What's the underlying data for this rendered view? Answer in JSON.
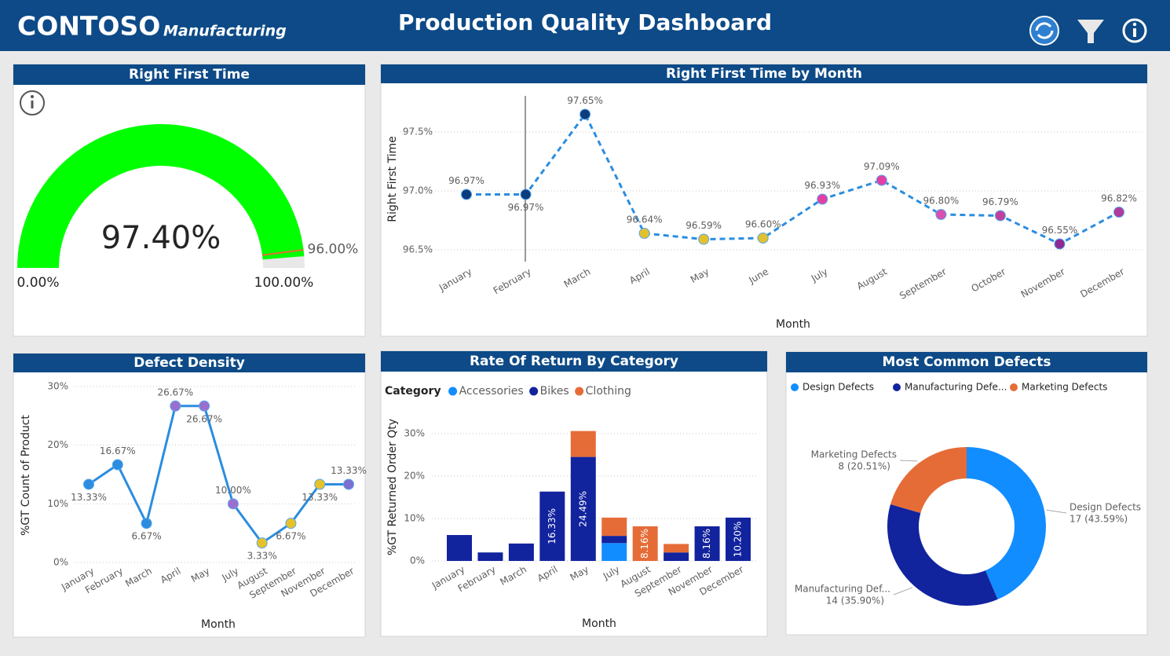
{
  "header": {
    "brand": "CONTOSO",
    "subtitle": "Manufacturing",
    "title": "Production Quality Dashboard"
  },
  "chart_data": [
    {
      "type": "gauge",
      "title": "Right First Time",
      "values": [
        97.4
      ],
      "value_labels": [
        "97.40%"
      ],
      "color": "#00ff00",
      "ylim": [
        0,
        100
      ],
      "yticks": [
        {
          "value": 0,
          "label": "0.00%"
        },
        {
          "value": 100,
          "label": "100.00%"
        }
      ],
      "target": 96,
      "target_label": "96.00%"
    },
    {
      "type": "line",
      "title": "Right First Time by Month",
      "xlabel": "Month",
      "ylabel": "Right First Time",
      "categories": [
        "January",
        "February",
        "March",
        "April",
        "May",
        "June",
        "July",
        "August",
        "September",
        "October",
        "November",
        "December"
      ],
      "values": [
        96.97,
        96.97,
        97.65,
        96.64,
        96.59,
        96.6,
        96.93,
        97.09,
        96.8,
        96.79,
        96.55,
        96.82
      ],
      "value_labels": [
        "96.97%",
        "96.97%",
        "97.65%",
        "96.64%",
        "96.59%",
        "96.60%",
        "96.93%",
        "97.09%",
        "96.80%",
        "96.79%",
        "96.55%",
        "96.82%"
      ],
      "color": "#2b8de0",
      "dashed": true,
      "point_colors": [
        "#0b3d7e",
        "#0b3d7e",
        "#0b3d7e",
        "#e2c12f",
        "#e2c12f",
        "#e2c12f",
        "#e43fa6",
        "#e43fa6",
        "#d94fb0",
        "#c0409e",
        "#8e2a93",
        "#b13a9c"
      ],
      "ylim": [
        96.4,
        97.8
      ],
      "yticks": [
        {
          "value": 96.5,
          "label": "96.5%"
        },
        {
          "value": 97,
          "label": "97.0%"
        },
        {
          "value": 97.5,
          "label": "97.5%"
        }
      ],
      "grid": true
    },
    {
      "type": "line",
      "title": "Defect Density",
      "xlabel": "Month",
      "ylabel": "%GT Count of Product",
      "categories": [
        "January",
        "February",
        "March",
        "April",
        "May",
        "July",
        "August",
        "September",
        "November",
        "December"
      ],
      "values": [
        13.33,
        16.67,
        6.67,
        26.67,
        26.67,
        10,
        3.33,
        6.67,
        13.33,
        13.33
      ],
      "value_labels": [
        "13.33%",
        "16.67%",
        "6.67%",
        "26.67%",
        "26.67%",
        "10.00%",
        "3.33%",
        "6.67%",
        "13.33%",
        "13.33%"
      ],
      "color": "#2b8de0",
      "dashed": false,
      "point_colors": [
        "#2b8de0",
        "#2b8de0",
        "#2b8de0",
        "#9b6fd0",
        "#9b6fd0",
        "#9b6fd0",
        "#e6c229",
        "#e6c229",
        "#e6c229",
        "#7b6fd0"
      ],
      "ylim": [
        0,
        32
      ],
      "yticks": [
        {
          "value": 0,
          "label": "0%"
        },
        {
          "value": 10,
          "label": "10%"
        },
        {
          "value": 20,
          "label": "20%"
        },
        {
          "value": 30,
          "label": "30%"
        }
      ],
      "grid": true
    },
    {
      "type": "bar",
      "stacked": true,
      "title": "Rate Of Return By Category",
      "xlabel": "Month",
      "ylabel": "%GT Returned Order Qty",
      "legend_title": "Category",
      "categories": [
        "January",
        "February",
        "March",
        "April",
        "May",
        "July",
        "August",
        "September",
        "November",
        "December"
      ],
      "series": [
        {
          "name": "Accessories",
          "color": "#118dff",
          "values": [
            null,
            null,
            null,
            null,
            null,
            4.2,
            null,
            null,
            null,
            null
          ]
        },
        {
          "name": "Bikes",
          "color": "#12239e",
          "values": [
            6.1,
            2.0,
            4.1,
            16.33,
            24.49,
            1.7,
            null,
            2.0,
            8.16,
            10.2
          ],
          "value_labels": [
            null,
            null,
            null,
            "16.33%",
            "24.49%",
            null,
            null,
            null,
            "8.16%",
            "10.20%"
          ]
        },
        {
          "name": "Clothing",
          "color": "#e66c37",
          "values": [
            null,
            null,
            null,
            null,
            6.1,
            4.3,
            8.16,
            2.0,
            null,
            null
          ],
          "value_labels": [
            null,
            null,
            null,
            null,
            null,
            null,
            "8.16%",
            null,
            null,
            null
          ]
        }
      ],
      "ylim": [
        0,
        32
      ],
      "yticks": [
        {
          "value": 0,
          "label": "0%"
        },
        {
          "value": 10,
          "label": "10%"
        },
        {
          "value": 20,
          "label": "20%"
        },
        {
          "value": 30,
          "label": "30%"
        }
      ],
      "grid": true
    },
    {
      "type": "donut",
      "title": "Most Common Defects",
      "categories": [
        "Design Defects",
        "Manufacturing Defe...",
        "Marketing Defects"
      ],
      "data_labels": [
        "Design Defects",
        "Manufacturing Def...",
        "Marketing Defects"
      ],
      "values": [
        17,
        14,
        8
      ],
      "value_labels": [
        "17 (43.59%)",
        "14 (35.90%)",
        "8 (20.51%)"
      ],
      "colors": [
        "#118dff",
        "#12239e",
        "#e66c37"
      ]
    }
  ]
}
